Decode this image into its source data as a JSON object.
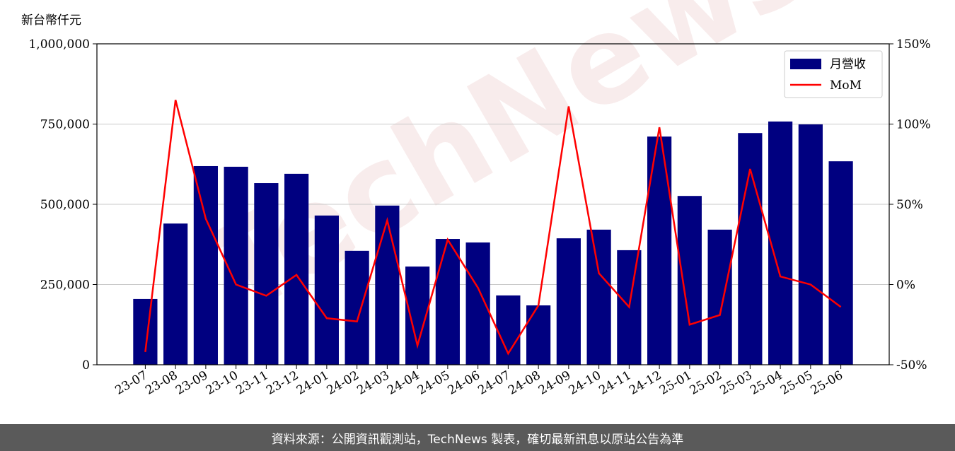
{
  "chart_data": {
    "type": "bar",
    "y_label": "新台幣仟元",
    "watermark": "TechNews",
    "categories": [
      "23-07",
      "23-08",
      "23-09",
      "23-10",
      "23-11",
      "23-12",
      "24-01",
      "24-02",
      "24-03",
      "24-04",
      "24-05",
      "24-06",
      "24-07",
      "24-08",
      "24-09",
      "24-10",
      "24-11",
      "24-12",
      "25-01",
      "25-02",
      "25-03",
      "25-04",
      "25-05",
      "25-06"
    ],
    "series": [
      {
        "name": "月營收",
        "type": "bar",
        "color": "#000080",
        "values": [
          205000,
          440000,
          619000,
          617000,
          566000,
          595000,
          465000,
          355000,
          496000,
          306000,
          392000,
          381000,
          216000,
          185000,
          394000,
          421000,
          357000,
          711000,
          526000,
          421000,
          722000,
          758000,
          749000,
          634000
        ]
      },
      {
        "name": "MoM",
        "type": "line",
        "axis": "y2",
        "color": "#ff0000",
        "values": [
          -42,
          115,
          41,
          0,
          -7,
          6,
          -21,
          -23,
          40,
          -38,
          28,
          -2,
          -43,
          -13,
          111,
          7,
          -14,
          98,
          -25,
          -19,
          72,
          5,
          0,
          -14
        ]
      }
    ],
    "ylim": [
      0,
      1000000
    ],
    "yticks": [
      0,
      {
        "value": 250000,
        "label": "250,000"
      },
      {
        "value": 500000,
        "label": "500,000"
      },
      {
        "value": 750000,
        "label": "750,000"
      },
      {
        "value": 1000000,
        "label": "1,000,000"
      }
    ],
    "y2lim": [
      -50,
      150
    ],
    "y2ticks": [
      {
        "value": -50,
        "label": "-50%"
      },
      {
        "value": 0,
        "label": "0%"
      },
      {
        "value": 50,
        "label": "50%"
      },
      {
        "value": 100,
        "label": "100%"
      },
      {
        "value": 150,
        "label": "150%"
      }
    ],
    "grid": true,
    "legend": "upper right"
  },
  "footer": "資料來源：公開資訊觀測站，TechNews 製表，確切最新訊息以原站公告為準"
}
